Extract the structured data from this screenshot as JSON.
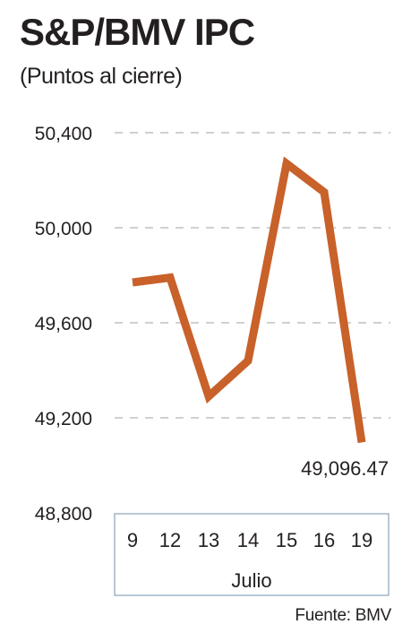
{
  "title": "S&P/BMV IPC",
  "subtitle": "(Puntos al cierre)",
  "source": "Fuente: BMV",
  "colors": {
    "line": "#c8612a",
    "grid": "#b5b5b5",
    "text": "#231f20",
    "box_border": "#8aa4bb"
  },
  "chart_data": {
    "type": "line",
    "title": "S&P/BMV IPC",
    "subtitle": "(Puntos al cierre)",
    "xlabel": "Julio",
    "ylabel": "",
    "categories": [
      "9",
      "12",
      "13",
      "14",
      "15",
      "16",
      "19"
    ],
    "series": [
      {
        "values": [
          49770,
          49790,
          49290,
          49440,
          50270,
          50150,
          49096.47
        ]
      }
    ],
    "y_ticks": [
      50400,
      50000,
      49600,
      49200,
      48800
    ],
    "y_tick_labels": [
      "50,400",
      "50,000",
      "49,600",
      "49,200",
      "48,800"
    ],
    "ylim": [
      48800,
      50400
    ],
    "grid": true,
    "annotations": [
      {
        "category": "19",
        "text": "49,096.47"
      }
    ]
  }
}
